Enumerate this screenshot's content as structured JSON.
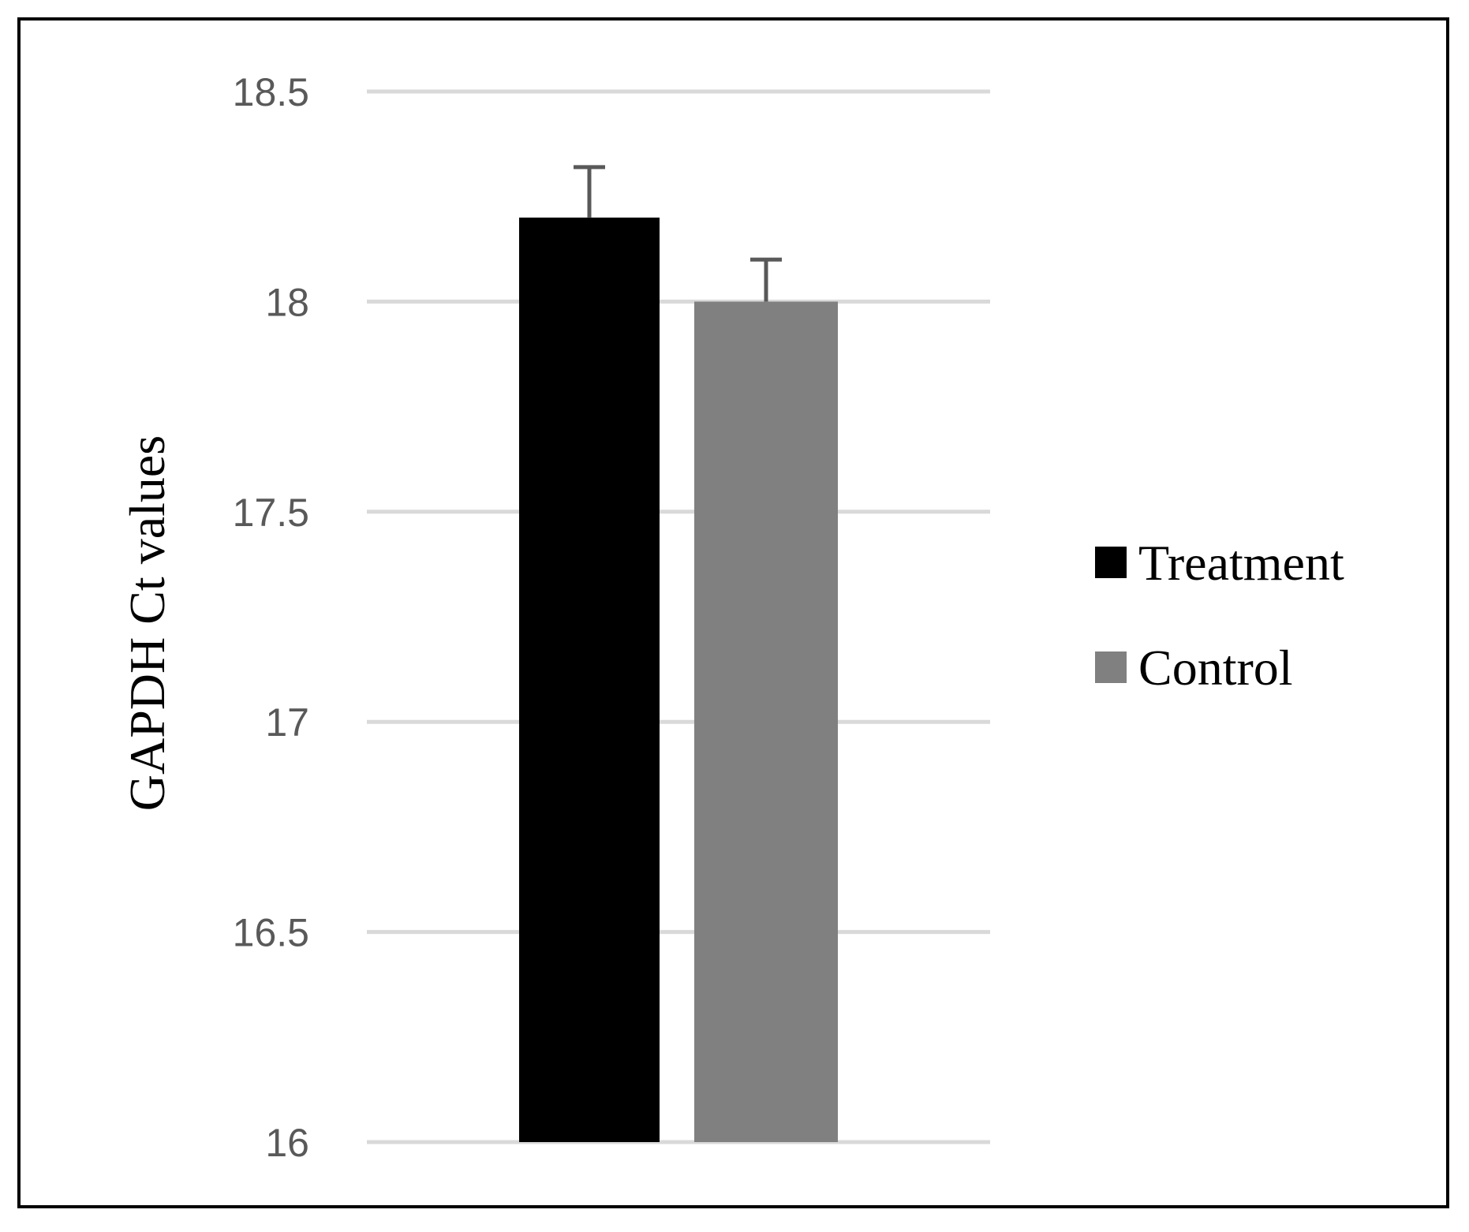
{
  "chart_data": {
    "type": "bar",
    "title": "",
    "xlabel": "",
    "ylabel": "GAPDH Ct values",
    "ylim": [
      16,
      18.5
    ],
    "yticks": [
      "18.5",
      "18",
      "17.5",
      "17",
      "16.5",
      "16"
    ],
    "grid": true,
    "legend_position": "right",
    "categories": [
      ""
    ],
    "series": [
      {
        "name": "Treatment",
        "values": [
          18.2
        ],
        "error": [
          0.12
        ],
        "color": "#000000"
      },
      {
        "name": "Control",
        "values": [
          18.0
        ],
        "error": [
          0.1
        ],
        "color": "#808080"
      }
    ]
  }
}
